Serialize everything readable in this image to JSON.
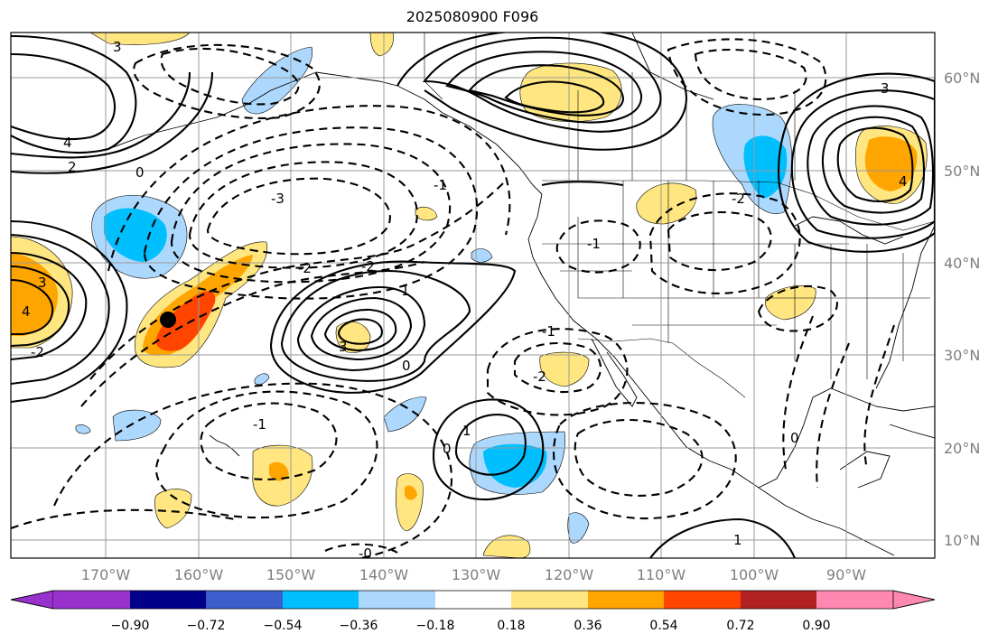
{
  "title": "2025080900 F096",
  "lon_labels": [
    "170°W",
    "160°W",
    "150°W",
    "140°W",
    "130°W",
    "120°W",
    "110°W",
    "100°W",
    "90°W"
  ],
  "lat_labels": [
    "60°N",
    "50°N",
    "40°N",
    "30°N",
    "20°N",
    "10°N"
  ],
  "colorbar": {
    "tick_labels": [
      "−0.90",
      "−0.72",
      "−0.54",
      "−0.36",
      "−0.18",
      "0.18",
      "0.36",
      "0.54",
      "0.72",
      "0.90"
    ],
    "colors": [
      "#9932cc",
      "#00008b",
      "#3a5fcd",
      "#00bfff",
      "#add8fd",
      "#ffffff",
      "#ffe680",
      "#ffa500",
      "#ff4500",
      "#b22222",
      "#ff88b0"
    ]
  },
  "contour_labels": [
    {
      "text": "3",
      "name": "contour-label-3-gulf-of-alaska"
    },
    {
      "text": "4",
      "name": "contour-label-4-gulf-of-alaska"
    },
    {
      "text": "2",
      "name": "contour-label-2-gulf-of-alaska"
    },
    {
      "text": "0",
      "name": "contour-label-0-gulf-of-alaska"
    },
    {
      "text": "-3",
      "name": "contour-label-neg3-north-pacific"
    },
    {
      "text": "-2",
      "name": "contour-label-neg2-north-pacific"
    },
    {
      "text": "-1",
      "name": "contour-label-neg1-north-pacific"
    },
    {
      "text": "3",
      "name": "contour-label-3-west-pacific"
    },
    {
      "text": "4",
      "name": "contour-label-4-west-pacific"
    },
    {
      "text": "-2",
      "name": "contour-label-neg2-west-pacific"
    },
    {
      "text": "3",
      "name": "contour-label-3-central-pacific"
    },
    {
      "text": "-2",
      "name": "contour-label-neg2-central-pacific"
    },
    {
      "text": "1",
      "name": "contour-label-1-central-pacific"
    },
    {
      "text": "0",
      "name": "contour-label-0-central-pacific"
    },
    {
      "text": "-1",
      "name": "contour-label-neg1-hawaii"
    },
    {
      "text": "0",
      "name": "contour-label-0-subtropical"
    },
    {
      "text": "1",
      "name": "contour-label-1-subtropical"
    },
    {
      "text": "-1",
      "name": "contour-label-neg1-baja"
    },
    {
      "text": "-2",
      "name": "contour-label-neg2-baja"
    },
    {
      "text": "-1",
      "name": "contour-label-neg1-great-basin"
    },
    {
      "text": "-2",
      "name": "contour-label-neg2-plains"
    },
    {
      "text": "3",
      "name": "contour-label-3-northeast"
    },
    {
      "text": "4",
      "name": "contour-label-4-northeast"
    },
    {
      "text": "1",
      "name": "contour-label-1-tropics"
    },
    {
      "text": "0",
      "name": "contour-label-0-tropics"
    },
    {
      "text": "-0",
      "name": "contour-label-neg0-tropics"
    }
  ]
}
